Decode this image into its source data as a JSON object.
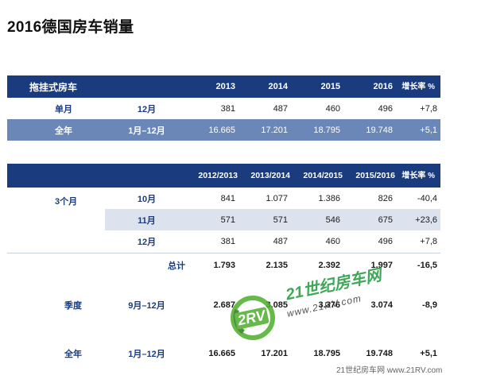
{
  "title": "2016德国房车销量",
  "table1": {
    "header": {
      "label": "拖挂式房车",
      "years": [
        "2013",
        "2014",
        "2015",
        "2016"
      ],
      "change_label": "增长率 %"
    },
    "rows": [
      {
        "label": "单月",
        "period": "12月",
        "values": [
          "381",
          "487",
          "460",
          "496"
        ],
        "change": "+7,8"
      },
      {
        "label": "全年",
        "period": "1月–12月",
        "values": [
          "16.665",
          "17.201",
          "18.795",
          "19.748"
        ],
        "change": "+5,1"
      }
    ]
  },
  "table2": {
    "header": {
      "years": [
        "2012/2013",
        "2013/2014",
        "2014/2015",
        "2015/2016"
      ],
      "change_label": "增长率 %"
    },
    "group_label": "3个月",
    "months": [
      {
        "period": "10月",
        "values": [
          "841",
          "1.077",
          "1.386",
          "826"
        ],
        "change": "-40,4"
      },
      {
        "period": "11月",
        "values": [
          "571",
          "571",
          "546",
          "675"
        ],
        "change": "+23,6"
      },
      {
        "period": "12月",
        "values": [
          "381",
          "487",
          "460",
          "496"
        ],
        "change": "+7,8"
      }
    ],
    "total": {
      "label": "总计",
      "values": [
        "1.793",
        "2.135",
        "2.392",
        "1.997"
      ],
      "change": "-16,5"
    },
    "quarter": {
      "label": "季度",
      "period": "9月–12月",
      "values": [
        "2.687",
        "3.085",
        "3.376",
        "3.074"
      ],
      "change": "-8,9"
    },
    "year": {
      "label": "全年",
      "period": "1月–12月",
      "values": [
        "16.665",
        "17.201",
        "18.795",
        "19.748"
      ],
      "change": "+5,1"
    }
  },
  "watermark": {
    "logo_text": "21世纪房车网",
    "logo_url": "www.21RV.com",
    "badge": "2RV",
    "footer": "21世纪房车网 www.21RV.com"
  },
  "colors": {
    "header": "#1a3c7e",
    "mid": "#6b87b7",
    "light": "#dce3ee",
    "logo_green": "#4caf2a"
  }
}
